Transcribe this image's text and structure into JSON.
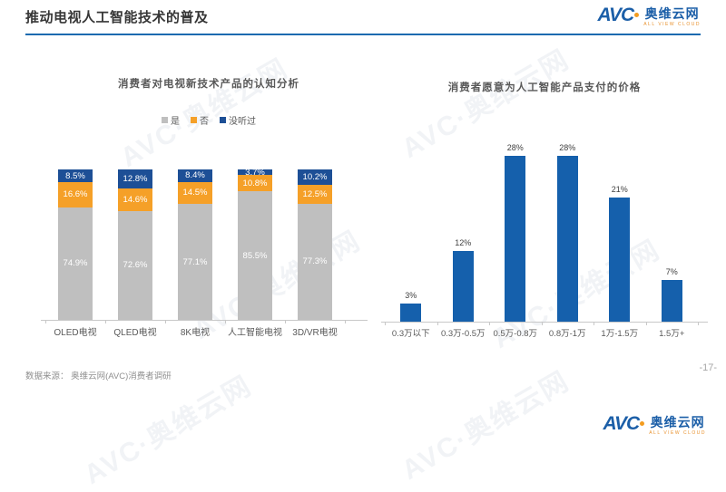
{
  "page": {
    "title": "推动电视人工智能技术的普及",
    "page_number": "-17-",
    "source_note": "数据来源： 奥维云网(AVC)消费者调研",
    "accent_color": "#1a6ab0"
  },
  "brand": {
    "name": "AVC",
    "cn_name": "奥维云网",
    "tagline": "ALL VIEW CLOUD",
    "blue": "#1c5fa8",
    "orange": "#f39c1f"
  },
  "watermark": {
    "text": "AVC·奥维云网"
  },
  "chart_data": [
    {
      "type": "bar",
      "subtype": "stacked-100-percent",
      "title": "消费者对电视新技术产品的认知分析",
      "categories": [
        "OLED电视",
        "QLED电视",
        "8K电视",
        "人工智能电视",
        "3D/VR电视"
      ],
      "series": [
        {
          "name": "是",
          "color": "#bfbfbf",
          "values": [
            74.9,
            72.6,
            77.1,
            85.5,
            77.3
          ]
        },
        {
          "name": "否",
          "color": "#f5a028",
          "values": [
            16.6,
            14.6,
            14.5,
            10.8,
            12.5
          ]
        },
        {
          "name": "没听过",
          "color": "#1d4f96",
          "values": [
            8.5,
            12.8,
            8.4,
            3.7,
            10.2
          ]
        }
      ],
      "value_suffix": "%",
      "legend_position": "top",
      "ylim": [
        0,
        100
      ],
      "grid": false
    },
    {
      "type": "bar",
      "title": "消费者愿意为人工智能产品支付的价格",
      "categories": [
        "0.3万以下",
        "0.3万-0.5万",
        "0.5万-0.8万",
        "0.8万-1万",
        "1万-1.5万",
        "1.5万+"
      ],
      "values": [
        3,
        12,
        28,
        28,
        21,
        7
      ],
      "labels": [
        "3%",
        "12%",
        "28%",
        "28%",
        "21%",
        "7%"
      ],
      "bar_color": "#1560ac",
      "ylim": [
        0,
        30
      ],
      "grid": false
    }
  ]
}
